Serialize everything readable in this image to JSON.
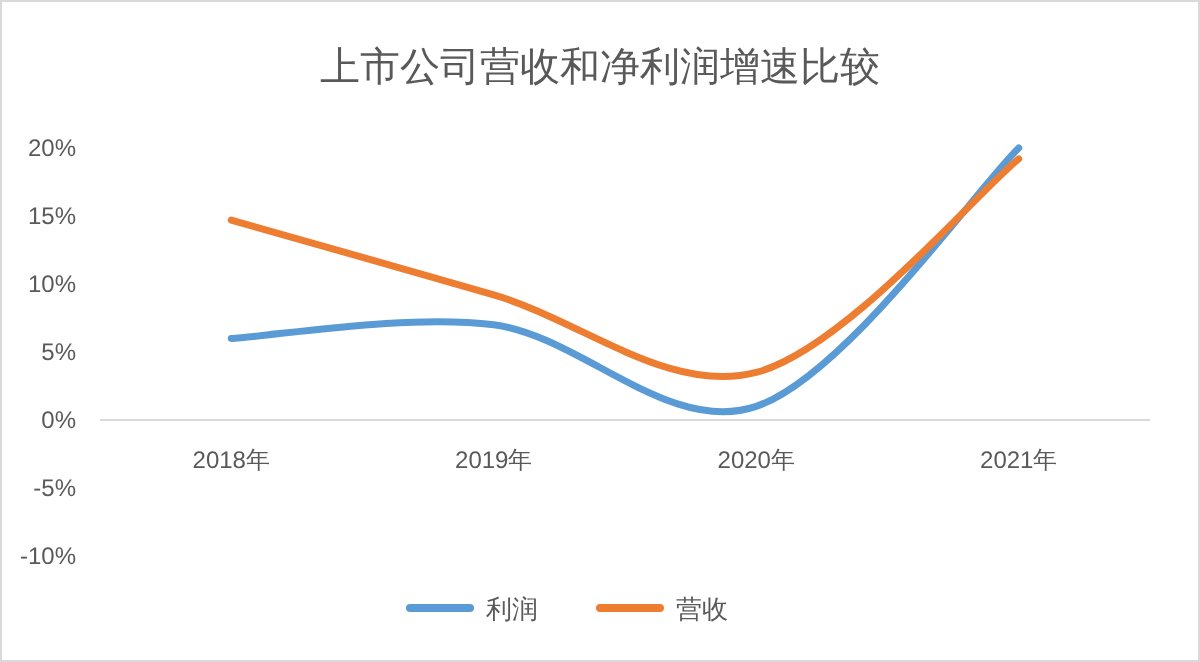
{
  "chart_data": {
    "type": "line",
    "title": "上市公司营收和净利润增速比较",
    "categories": [
      "2018年",
      "2019年",
      "2020年",
      "2021年"
    ],
    "series": [
      {
        "name": "利润",
        "color": "#5b9bd5",
        "values": [
          6.0,
          7.0,
          1.0,
          20.0
        ]
      },
      {
        "name": "营收",
        "color": "#ed7d31",
        "values": [
          14.7,
          9.2,
          3.5,
          19.2
        ]
      }
    ],
    "ylim": [
      -10,
      20
    ],
    "yticks": [
      {
        "value": -10,
        "label": "-10%"
      },
      {
        "value": -5,
        "label": "-5%"
      },
      {
        "value": 0,
        "label": "0%"
      },
      {
        "value": 5,
        "label": "5%"
      },
      {
        "value": 10,
        "label": "10%"
      },
      {
        "value": 15,
        "label": "15%"
      },
      {
        "value": 20,
        "label": "20%"
      }
    ],
    "grid": false,
    "legend": "bottom",
    "marker": "none",
    "line_style": "solid"
  }
}
